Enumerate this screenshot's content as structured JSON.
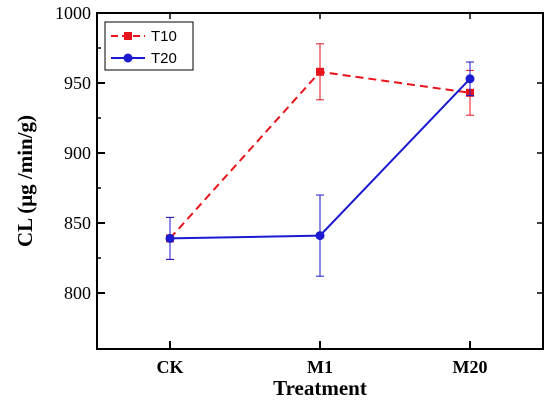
{
  "chart_data": {
    "type": "line",
    "title": "",
    "xlabel": "Treatment",
    "ylabel": "CL (μg /min/g)",
    "categories": [
      "CK",
      "M1",
      "M20"
    ],
    "yticks": [
      800,
      850,
      900,
      950,
      1000
    ],
    "ylim": [
      760,
      1000
    ],
    "grid": false,
    "legend_position": "top-left",
    "series": [
      {
        "name": "T10",
        "color": "#e8141c",
        "line_style": "dashed",
        "marker": "square",
        "values": [
          839,
          958,
          943
        ],
        "errors": [
          15,
          20,
          16
        ]
      },
      {
        "name": "T20",
        "color": "#1a1ad0",
        "line_style": "solid",
        "marker": "circle",
        "values": [
          839,
          841,
          953
        ],
        "errors": [
          15,
          29,
          12
        ]
      }
    ]
  }
}
